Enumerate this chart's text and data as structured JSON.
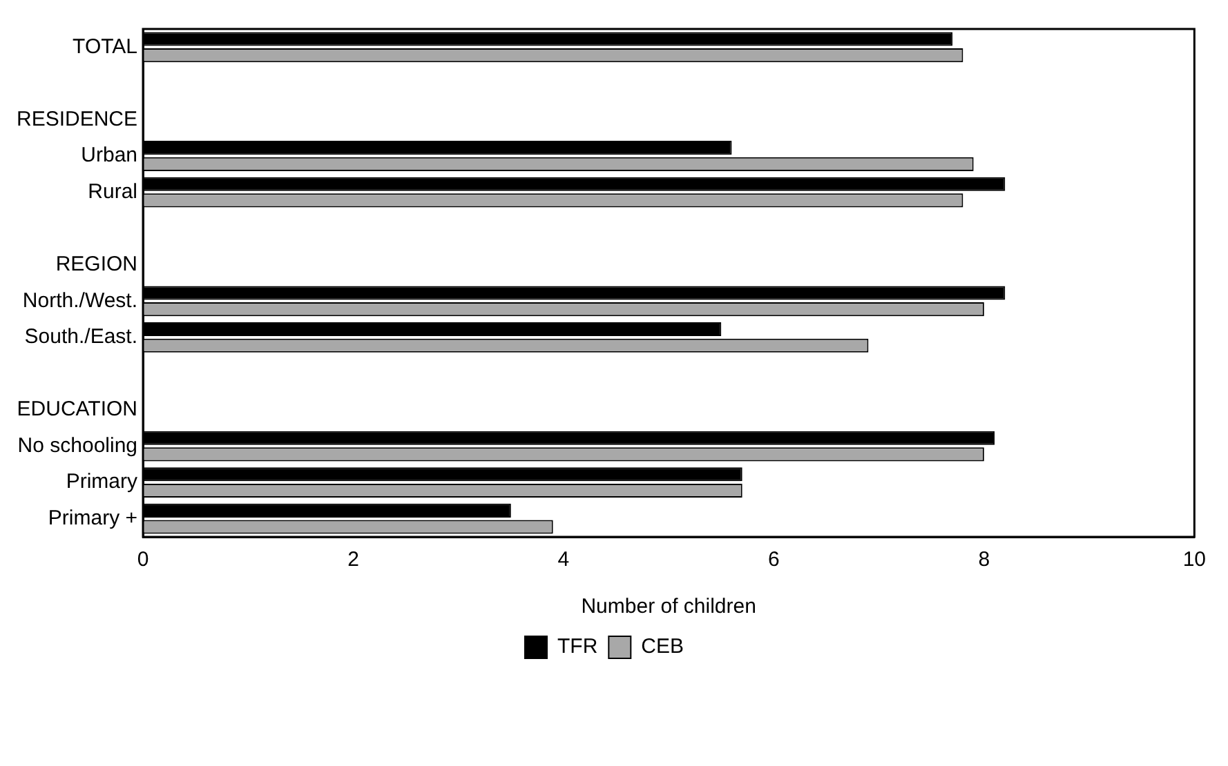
{
  "chart_data": {
    "type": "bar",
    "orientation": "horizontal",
    "xlabel": "Number of children",
    "categories": [
      "TOTAL",
      null,
      "RESIDENCE",
      "Urban",
      "Rural",
      null,
      "REGION",
      "North./West.",
      "South./East.",
      null,
      "EDUCATION",
      "No schooling",
      "Primary",
      "Primary +"
    ],
    "series": [
      {
        "name": "TFR",
        "color": "#000000",
        "values": [
          7.7,
          null,
          null,
          5.6,
          8.2,
          null,
          null,
          8.2,
          5.5,
          null,
          null,
          8.1,
          5.7,
          3.5
        ]
      },
      {
        "name": "CEB",
        "color": "#a8a8a8",
        "values": [
          7.8,
          null,
          null,
          7.9,
          7.8,
          null,
          null,
          8.0,
          6.9,
          null,
          null,
          8.0,
          5.7,
          3.9
        ]
      }
    ],
    "xlim": [
      0,
      10
    ],
    "xticks": [
      0,
      2,
      4,
      6,
      8,
      10
    ],
    "grid": false,
    "legend": "bottom"
  }
}
